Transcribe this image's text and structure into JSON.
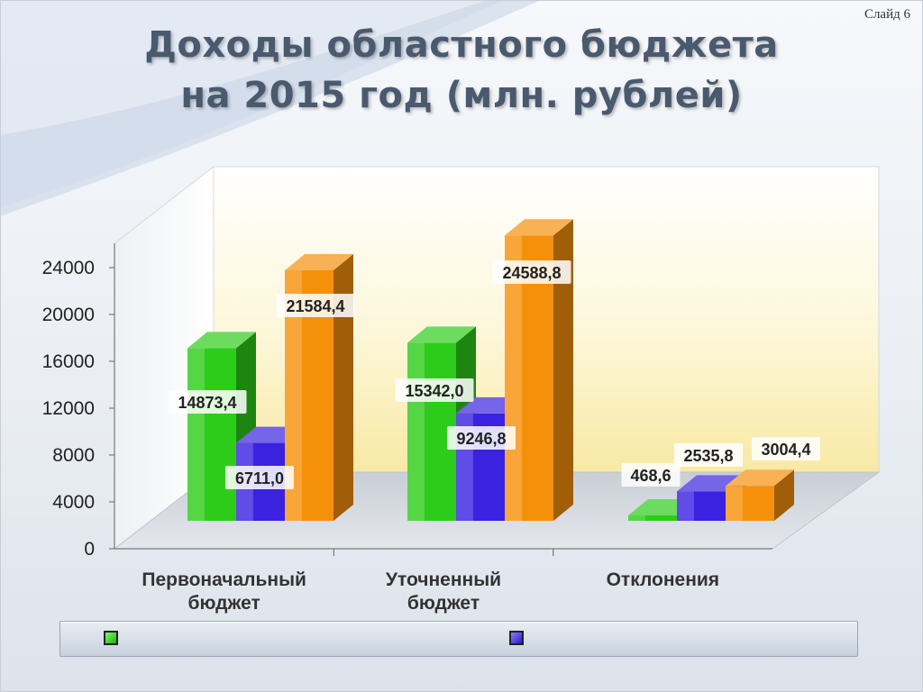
{
  "slide_label": "Слайд 6",
  "title_line1": "Доходы областного бюджета",
  "title_line2": "на 2015 год (млн. рублей)",
  "chart_data": {
    "type": "bar",
    "categories": [
      "Первоначальный бюджет",
      "Уточненный бюджет",
      "Отклонения"
    ],
    "category_lines": [
      [
        "Первоначальный",
        "бюджет"
      ],
      [
        "Уточненный",
        "бюджет"
      ],
      [
        "Отклонения"
      ]
    ],
    "series": [
      {
        "values": [
          14873.4,
          15342.0,
          468.6
        ],
        "labels": [
          "14873,4",
          "15342,0",
          "468,6"
        ],
        "color": "#2ecc1a"
      },
      {
        "values": [
          6711.0,
          9246.8,
          2535.8
        ],
        "labels": [
          "6711,0",
          "9246,8",
          "2535,8"
        ],
        "color": "#3b22e0"
      },
      {
        "values": [
          21584.4,
          24588.8,
          3004.4
        ],
        "labels": [
          "21584,4",
          "24588,8",
          "3004,4"
        ],
        "color": "#f5900a"
      }
    ],
    "yticks": [
      0,
      4000,
      8000,
      12000,
      16000,
      20000,
      24000
    ],
    "ylim": [
      0,
      24000
    ],
    "legend": "bottom"
  }
}
